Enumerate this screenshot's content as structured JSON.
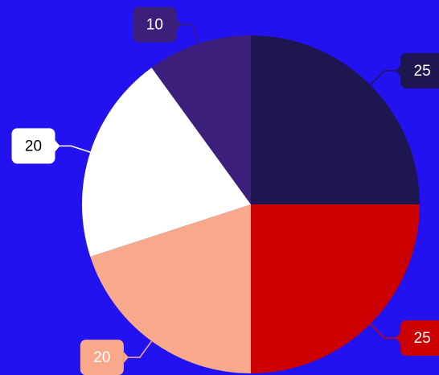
{
  "chart_data": {
    "type": "pie",
    "categories": [
      null,
      null,
      null,
      null,
      null
    ],
    "values": [
      25,
      25,
      20,
      20,
      10
    ],
    "colors": [
      "#1e1650",
      "#cc0000",
      "#f9a98b",
      "#ffffff",
      "#3b1f7a"
    ],
    "start_angle": 0,
    "direction": "clockwise"
  }
}
